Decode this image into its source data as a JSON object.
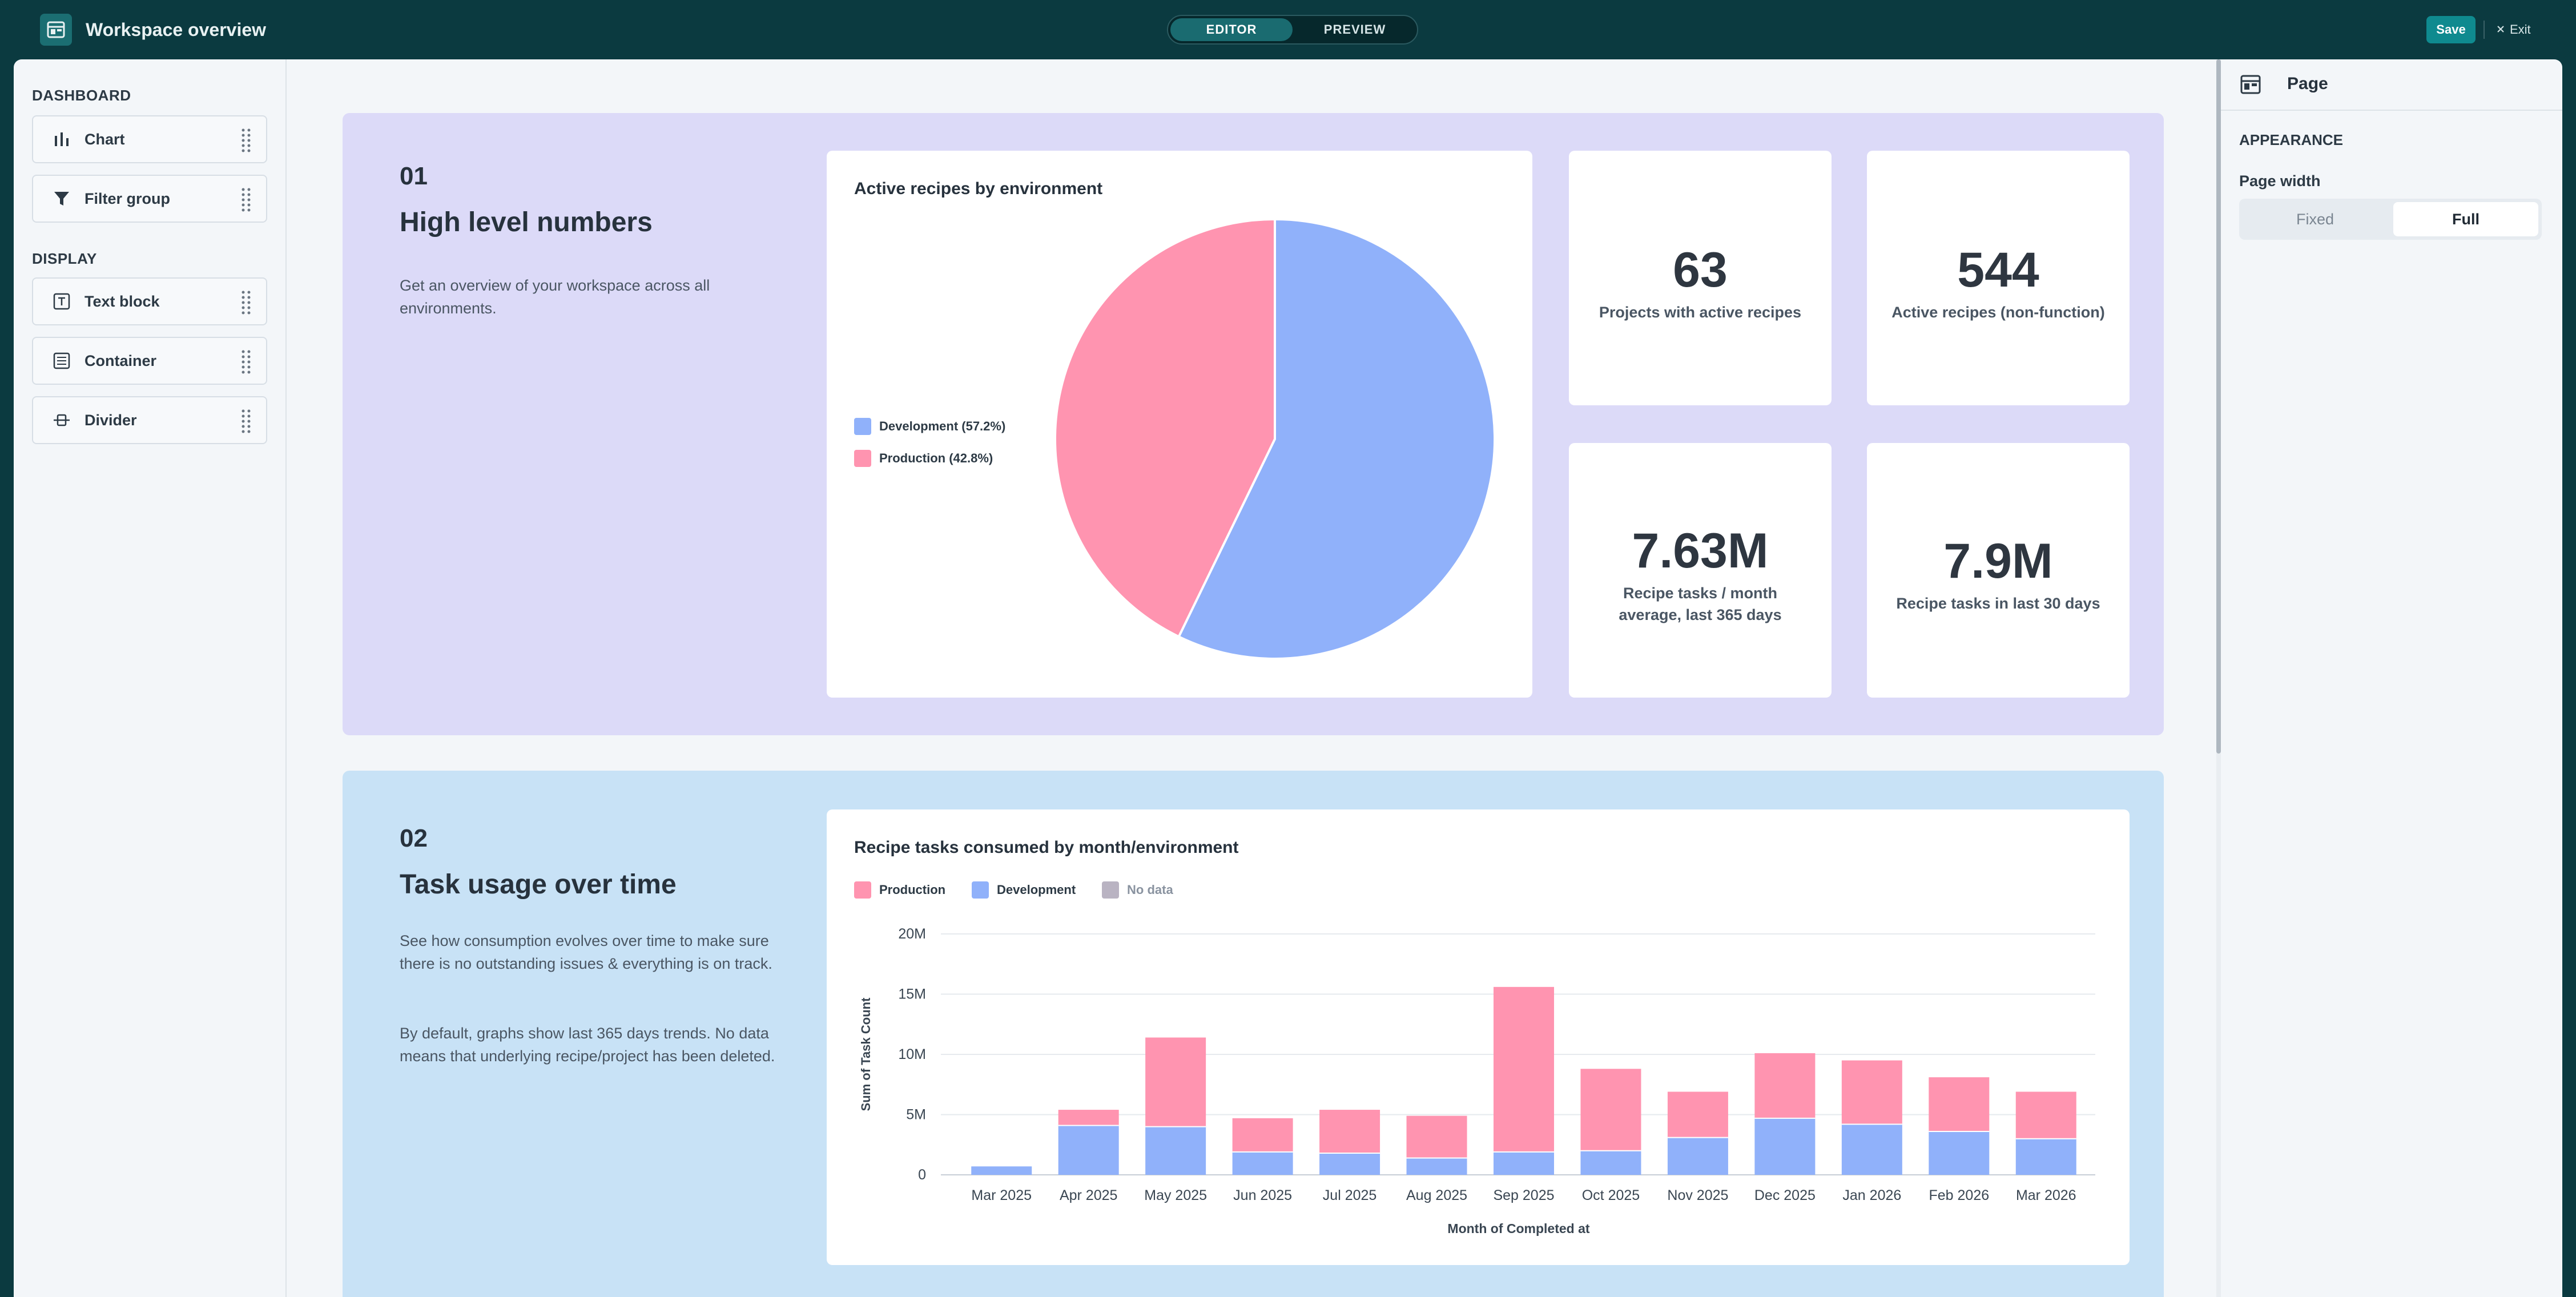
{
  "header": {
    "title": "Workspace overview",
    "mode_editor": "EDITOR",
    "mode_preview": "PREVIEW",
    "save_label": "Save",
    "exit_label": "Exit"
  },
  "palette": {
    "dashboard_label": "DASHBOARD",
    "display_label": "DISPLAY",
    "dashboard_items": [
      {
        "label": "Chart",
        "icon": "bar-chart-icon"
      },
      {
        "label": "Filter group",
        "icon": "filter-icon"
      }
    ],
    "display_items": [
      {
        "label": "Text block",
        "icon": "text-icon"
      },
      {
        "label": "Container",
        "icon": "container-icon"
      },
      {
        "label": "Divider",
        "icon": "divider-icon"
      }
    ]
  },
  "section1": {
    "number": "01",
    "title": "High level numbers",
    "description": "Get an overview of your workspace across all environments.",
    "pie_title": "Active recipes by environment",
    "stats": [
      {
        "value": "63",
        "label": "Projects with active recipes"
      },
      {
        "value": "544",
        "label": "Active recipes (non-function)"
      },
      {
        "value": "7.63M",
        "label": "Recipe tasks / month average, last 365 days"
      },
      {
        "value": "7.9M",
        "label": "Recipe tasks in last 30 days"
      }
    ]
  },
  "section2": {
    "number": "02",
    "title": "Task usage over time",
    "description_1": "See how consumption evolves over time to make sure there is no outstanding issues & everything is on track.",
    "description_2": "By default, graphs show last 365 days trends. No data means that underlying recipe/project has been deleted.",
    "bar_title": "Recipe tasks consumed by month/environment"
  },
  "right_panel": {
    "title": "Page",
    "section": "APPEARANCE",
    "page_width_label": "Page width",
    "options": [
      "Fixed",
      "Full"
    ],
    "selected": "Full"
  },
  "colors": {
    "production": "#ff94b0",
    "development": "#90b1fa",
    "no_data": "#b9b3c2",
    "accent": "#0f8a8f"
  },
  "chart_data": [
    {
      "type": "pie",
      "title": "Active recipes by environment",
      "slices": [
        {
          "label": "Development (57.2%)",
          "value": 57.2,
          "color": "#90b1fa"
        },
        {
          "label": "Production (42.8%)",
          "value": 42.8,
          "color": "#ff94b0"
        }
      ],
      "legend_position": "left"
    },
    {
      "type": "bar",
      "stacked": true,
      "title": "Recipe tasks consumed by month/environment",
      "xlabel": "Month of Completed at",
      "ylabel": "Sum of Task Count",
      "ylim": [
        0,
        20000000
      ],
      "yticks": [
        {
          "value": 0,
          "label": "0"
        },
        {
          "value": 5000000,
          "label": "5M"
        },
        {
          "value": 10000000,
          "label": "10M"
        },
        {
          "value": 15000000,
          "label": "15M"
        },
        {
          "value": 20000000,
          "label": "20M"
        }
      ],
      "grid": true,
      "legend_position": "top-left",
      "legend": [
        {
          "name": "Production",
          "color": "#ff94b0"
        },
        {
          "name": "Development",
          "color": "#90b1fa"
        },
        {
          "name": "No data",
          "color": "#b9b3c2"
        }
      ],
      "categories": [
        "Mar 2025",
        "Apr 2025",
        "May 2025",
        "Jun 2025",
        "Jul 2025",
        "Aug 2025",
        "Sep 2025",
        "Oct 2025",
        "Nov 2025",
        "Dec 2025",
        "Jan 2026",
        "Feb 2026",
        "Mar 2026"
      ],
      "series": [
        {
          "name": "Development",
          "color": "#90b1fa",
          "values": [
            700000,
            4100000,
            4000000,
            1900000,
            1800000,
            1400000,
            1900000,
            2000000,
            3100000,
            4700000,
            4200000,
            3600000,
            3000000
          ]
        },
        {
          "name": "Production",
          "color": "#ff94b0",
          "values": [
            0,
            1300000,
            7400000,
            2800000,
            3600000,
            3500000,
            13700000,
            6800000,
            3800000,
            5400000,
            5300000,
            4500000,
            3900000
          ]
        }
      ]
    }
  ]
}
